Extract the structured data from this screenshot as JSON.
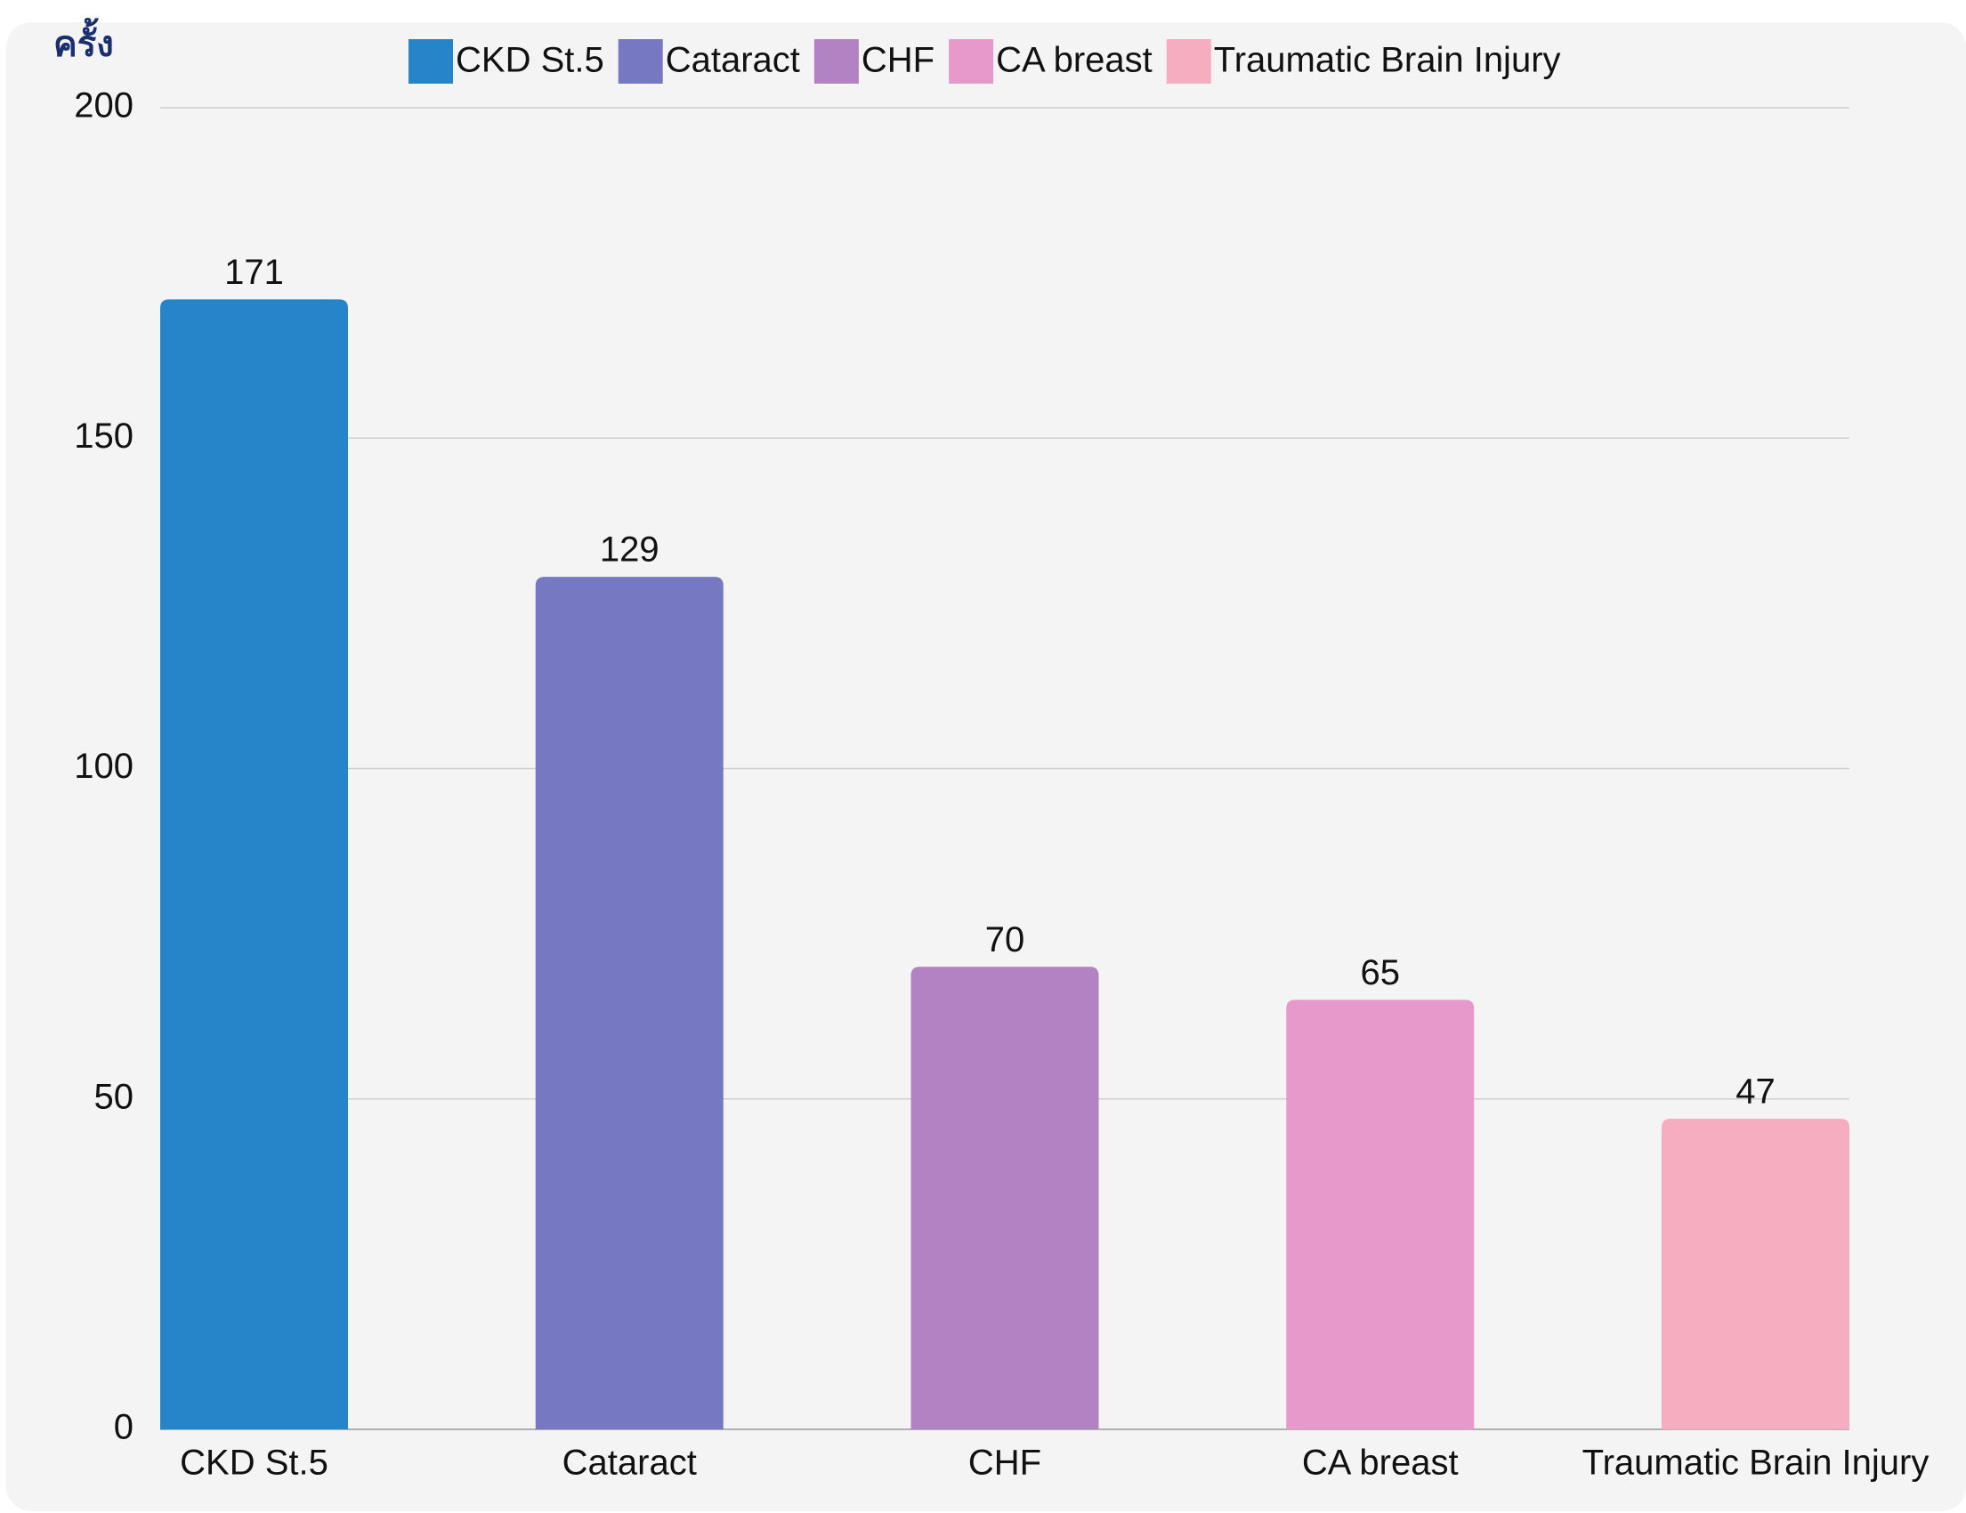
{
  "chart_data": {
    "type": "bar",
    "y_label": "ครั้ง",
    "categories": [
      "CKD St.5",
      "Cataract",
      "CHF",
      "CA breast",
      "Traumatic Brain Injury"
    ],
    "values": [
      171,
      129,
      70,
      65,
      47
    ],
    "colors": [
      "#2684c8",
      "#7678c2",
      "#b282c2",
      "#e899cb",
      "#f6adc0"
    ],
    "ylim": [
      0,
      200
    ],
    "yticks": [
      0,
      50,
      100,
      150,
      200
    ],
    "grid": true,
    "legend": "top"
  }
}
